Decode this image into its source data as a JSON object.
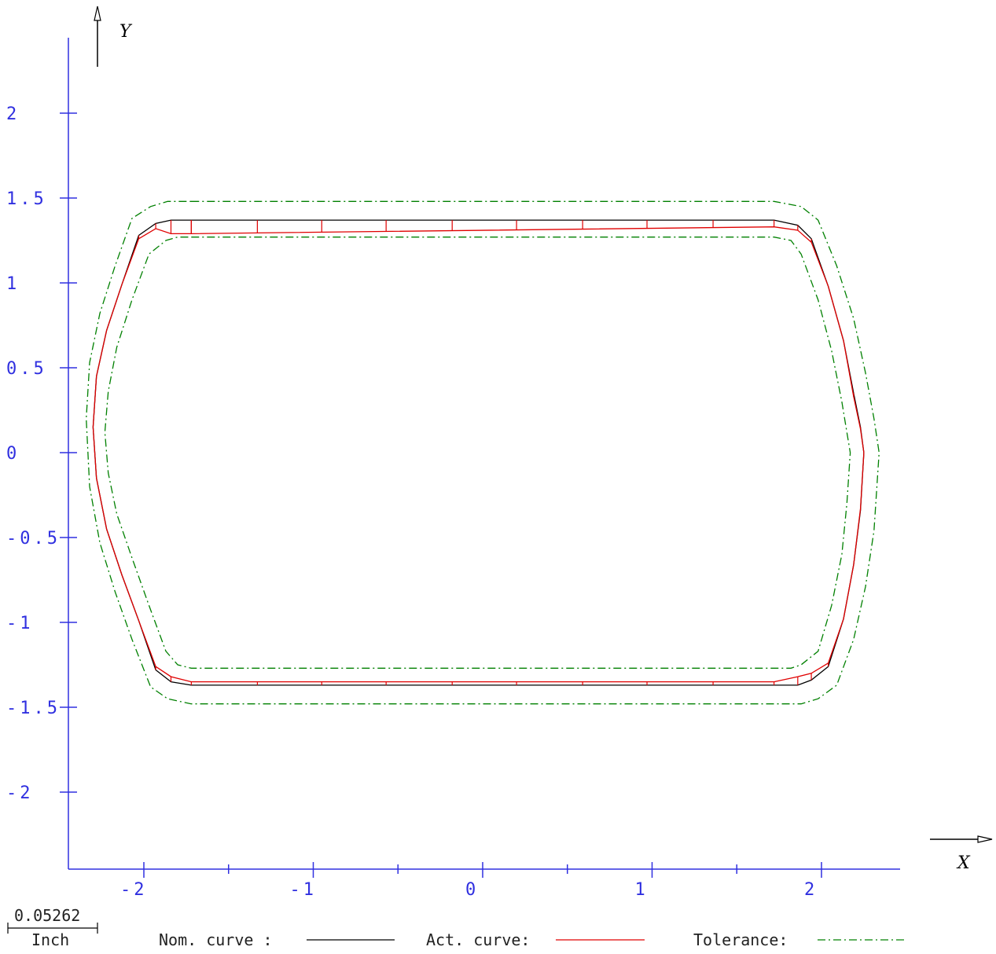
{
  "chart_data": {
    "type": "line",
    "xlabel": "X",
    "ylabel": "Y",
    "xlim": [
      -2.45,
      2.5
    ],
    "ylim": [
      -2.45,
      2.45
    ],
    "x_ticks": [
      {
        "value": -2,
        "label": "-2"
      },
      {
        "value": -1,
        "label": "-1"
      },
      {
        "value": 0,
        "label": "0"
      },
      {
        "value": 1,
        "label": "1"
      },
      {
        "value": 2,
        "label": "2"
      }
    ],
    "x_minor_ticks": [
      -1.5,
      -0.5,
      0.5,
      1.5
    ],
    "y_ticks": [
      {
        "value": 2,
        "label": "2"
      },
      {
        "value": 1.5,
        "label": "1.5"
      },
      {
        "value": 1,
        "label": "1"
      },
      {
        "value": 0.5,
        "label": "0.5"
      },
      {
        "value": 0,
        "label": "0"
      },
      {
        "value": -0.5,
        "label": "-0.5"
      },
      {
        "value": -1,
        "label": "-1"
      },
      {
        "value": -1.5,
        "label": "-1.5"
      },
      {
        "value": -2,
        "label": "-2"
      }
    ],
    "colors": {
      "axes": "#3030e0",
      "nominal": "#000000",
      "actual": "#e00000",
      "tolerance": "#008000"
    },
    "series": [
      {
        "name": "Nom. curve :",
        "style": "solid",
        "x": [
          -1.72,
          1.72,
          1.86,
          1.94,
          2.04,
          2.13,
          2.19,
          2.23,
          2.25,
          2.23,
          2.19,
          2.13,
          2.04,
          1.94,
          1.86,
          1.72,
          -1.72,
          -1.84,
          -1.93,
          -2.03,
          -2.13,
          -2.22,
          -2.28,
          -2.3,
          -2.28,
          -2.22,
          -2.13,
          -2.03,
          -1.93,
          -1.84,
          -1.72
        ],
        "y": [
          1.37,
          1.37,
          1.34,
          1.26,
          0.98,
          0.66,
          0.35,
          0.15,
          0.0,
          -0.34,
          -0.66,
          -0.98,
          -1.26,
          -1.34,
          -1.37,
          -1.37,
          -1.37,
          -1.35,
          -1.28,
          -0.99,
          -0.72,
          -0.45,
          -0.15,
          0.15,
          0.45,
          0.72,
          0.99,
          1.28,
          1.35,
          1.37,
          1.37
        ]
      },
      {
        "name": "Act. curve:",
        "style": "solid",
        "x": [
          -1.72,
          1.72,
          1.86,
          1.94,
          2.04,
          2.13,
          2.19,
          2.23,
          2.25,
          2.23,
          2.19,
          2.13,
          2.04,
          1.94,
          1.86,
          1.72,
          -1.72,
          -1.84,
          -1.93,
          -2.03,
          -2.13,
          -2.22,
          -2.28,
          -2.3,
          -2.28,
          -2.22,
          -2.13,
          -2.03,
          -1.93,
          -1.84,
          -1.72
        ],
        "y": [
          1.29,
          1.33,
          1.31,
          1.24,
          0.98,
          0.66,
          0.33,
          0.14,
          0.0,
          -0.33,
          -0.66,
          -0.98,
          -1.24,
          -1.3,
          -1.32,
          -1.35,
          -1.35,
          -1.32,
          -1.26,
          -0.99,
          -0.72,
          -0.45,
          -0.15,
          0.15,
          0.45,
          0.72,
          0.99,
          1.26,
          1.32,
          1.29,
          1.29
        ]
      },
      {
        "name": "Tolerance:",
        "style": "dash-dot",
        "x": [
          -1.72,
          1.72,
          1.88,
          1.98,
          2.09,
          2.19,
          2.26,
          2.31,
          2.34,
          2.31,
          2.26,
          2.19,
          2.09,
          1.98,
          1.88,
          1.72,
          -1.72,
          -1.86,
          -1.96,
          -2.07,
          -2.17,
          -2.26,
          -2.32,
          -2.34,
          -2.32,
          -2.26,
          -2.17,
          -2.07,
          -1.96,
          -1.86,
          -1.72
        ],
        "y": [
          1.48,
          1.48,
          1.45,
          1.37,
          1.1,
          0.79,
          0.47,
          0.2,
          0.0,
          -0.46,
          -0.79,
          -1.1,
          -1.37,
          -1.45,
          -1.48,
          -1.48,
          -1.48,
          -1.45,
          -1.38,
          -1.1,
          -0.82,
          -0.53,
          -0.2,
          0.2,
          0.53,
          0.82,
          1.1,
          1.38,
          1.45,
          1.48,
          1.48
        ]
      },
      {
        "name": "",
        "style": "dash-dot",
        "x": [
          -1.72,
          1.72,
          1.82,
          1.88,
          1.98,
          2.06,
          2.12,
          2.15,
          2.17,
          2.15,
          2.12,
          2.06,
          1.98,
          1.88,
          1.82,
          1.72,
          -1.72,
          -1.8,
          -1.87,
          -1.97,
          -2.07,
          -2.16,
          -2.21,
          -2.23,
          -2.21,
          -2.16,
          -2.07,
          -1.97,
          -1.87,
          -1.8,
          -1.72
        ],
        "y": [
          1.27,
          1.27,
          1.25,
          1.17,
          0.9,
          0.6,
          0.3,
          0.12,
          0.0,
          -0.3,
          -0.6,
          -0.9,
          -1.17,
          -1.25,
          -1.27,
          -1.27,
          -1.27,
          -1.25,
          -1.17,
          -0.9,
          -0.62,
          -0.36,
          -0.12,
          0.12,
          0.36,
          0.62,
          0.9,
          1.17,
          1.25,
          1.27,
          1.27
        ]
      }
    ],
    "deviation_marker_x": [
      -1.33,
      -0.95,
      -0.57,
      -0.18,
      0.2,
      0.59,
      0.97,
      1.36
    ]
  },
  "legend": {
    "scale_value": "0.05262",
    "scale_unit": "Inch",
    "nominal_label": "Nom. curve :",
    "actual_label": "Act. curve:",
    "tolerance_label": "Tolerance:"
  }
}
